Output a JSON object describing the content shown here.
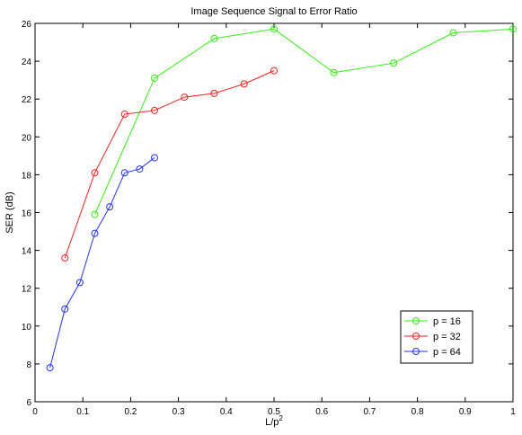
{
  "chart_data": {
    "type": "line",
    "title": "Image Sequence Signal to Error Ratio",
    "xlabel": "L/p",
    "xlabel_superscript": "2",
    "ylabel": "SER (dB)",
    "xlim": [
      0,
      1
    ],
    "ylim": [
      6,
      26
    ],
    "xticks": [
      0,
      0.1,
      0.2,
      0.3,
      0.4,
      0.5,
      0.6,
      0.7,
      0.8,
      0.9,
      1
    ],
    "xtick_labels": [
      "0",
      "0.1",
      "0.2",
      "0.3",
      "0.4",
      "0.5",
      "0.6",
      "0.7",
      "0.8",
      "0.9",
      "1"
    ],
    "yticks": [
      6,
      8,
      10,
      12,
      14,
      16,
      18,
      20,
      22,
      24,
      26
    ],
    "ytick_labels": [
      "6",
      "8",
      "10",
      "12",
      "14",
      "16",
      "18",
      "20",
      "22",
      "24",
      "26"
    ],
    "grid": false,
    "legend_position": "bottom-right",
    "series": [
      {
        "name": "p = 16",
        "color": "#33ee11",
        "x": [
          0.125,
          0.25,
          0.375,
          0.5,
          0.625,
          0.75,
          0.875,
          1.0
        ],
        "y": [
          15.9,
          23.1,
          25.2,
          25.7,
          23.4,
          23.9,
          25.5,
          25.7
        ]
      },
      {
        "name": "p = 32",
        "color": "#ee2222",
        "x": [
          0.0625,
          0.125,
          0.1875,
          0.25,
          0.3125,
          0.375,
          0.4375,
          0.5
        ],
        "y": [
          13.6,
          18.1,
          21.2,
          21.4,
          22.1,
          22.3,
          22.8,
          23.5
        ]
      },
      {
        "name": "p = 64",
        "color": "#2233ee",
        "x": [
          0.03125,
          0.0625,
          0.09375,
          0.125,
          0.15625,
          0.1875,
          0.21875,
          0.25
        ],
        "y": [
          7.8,
          10.9,
          12.3,
          14.9,
          16.3,
          18.1,
          18.3,
          18.9
        ]
      }
    ]
  }
}
